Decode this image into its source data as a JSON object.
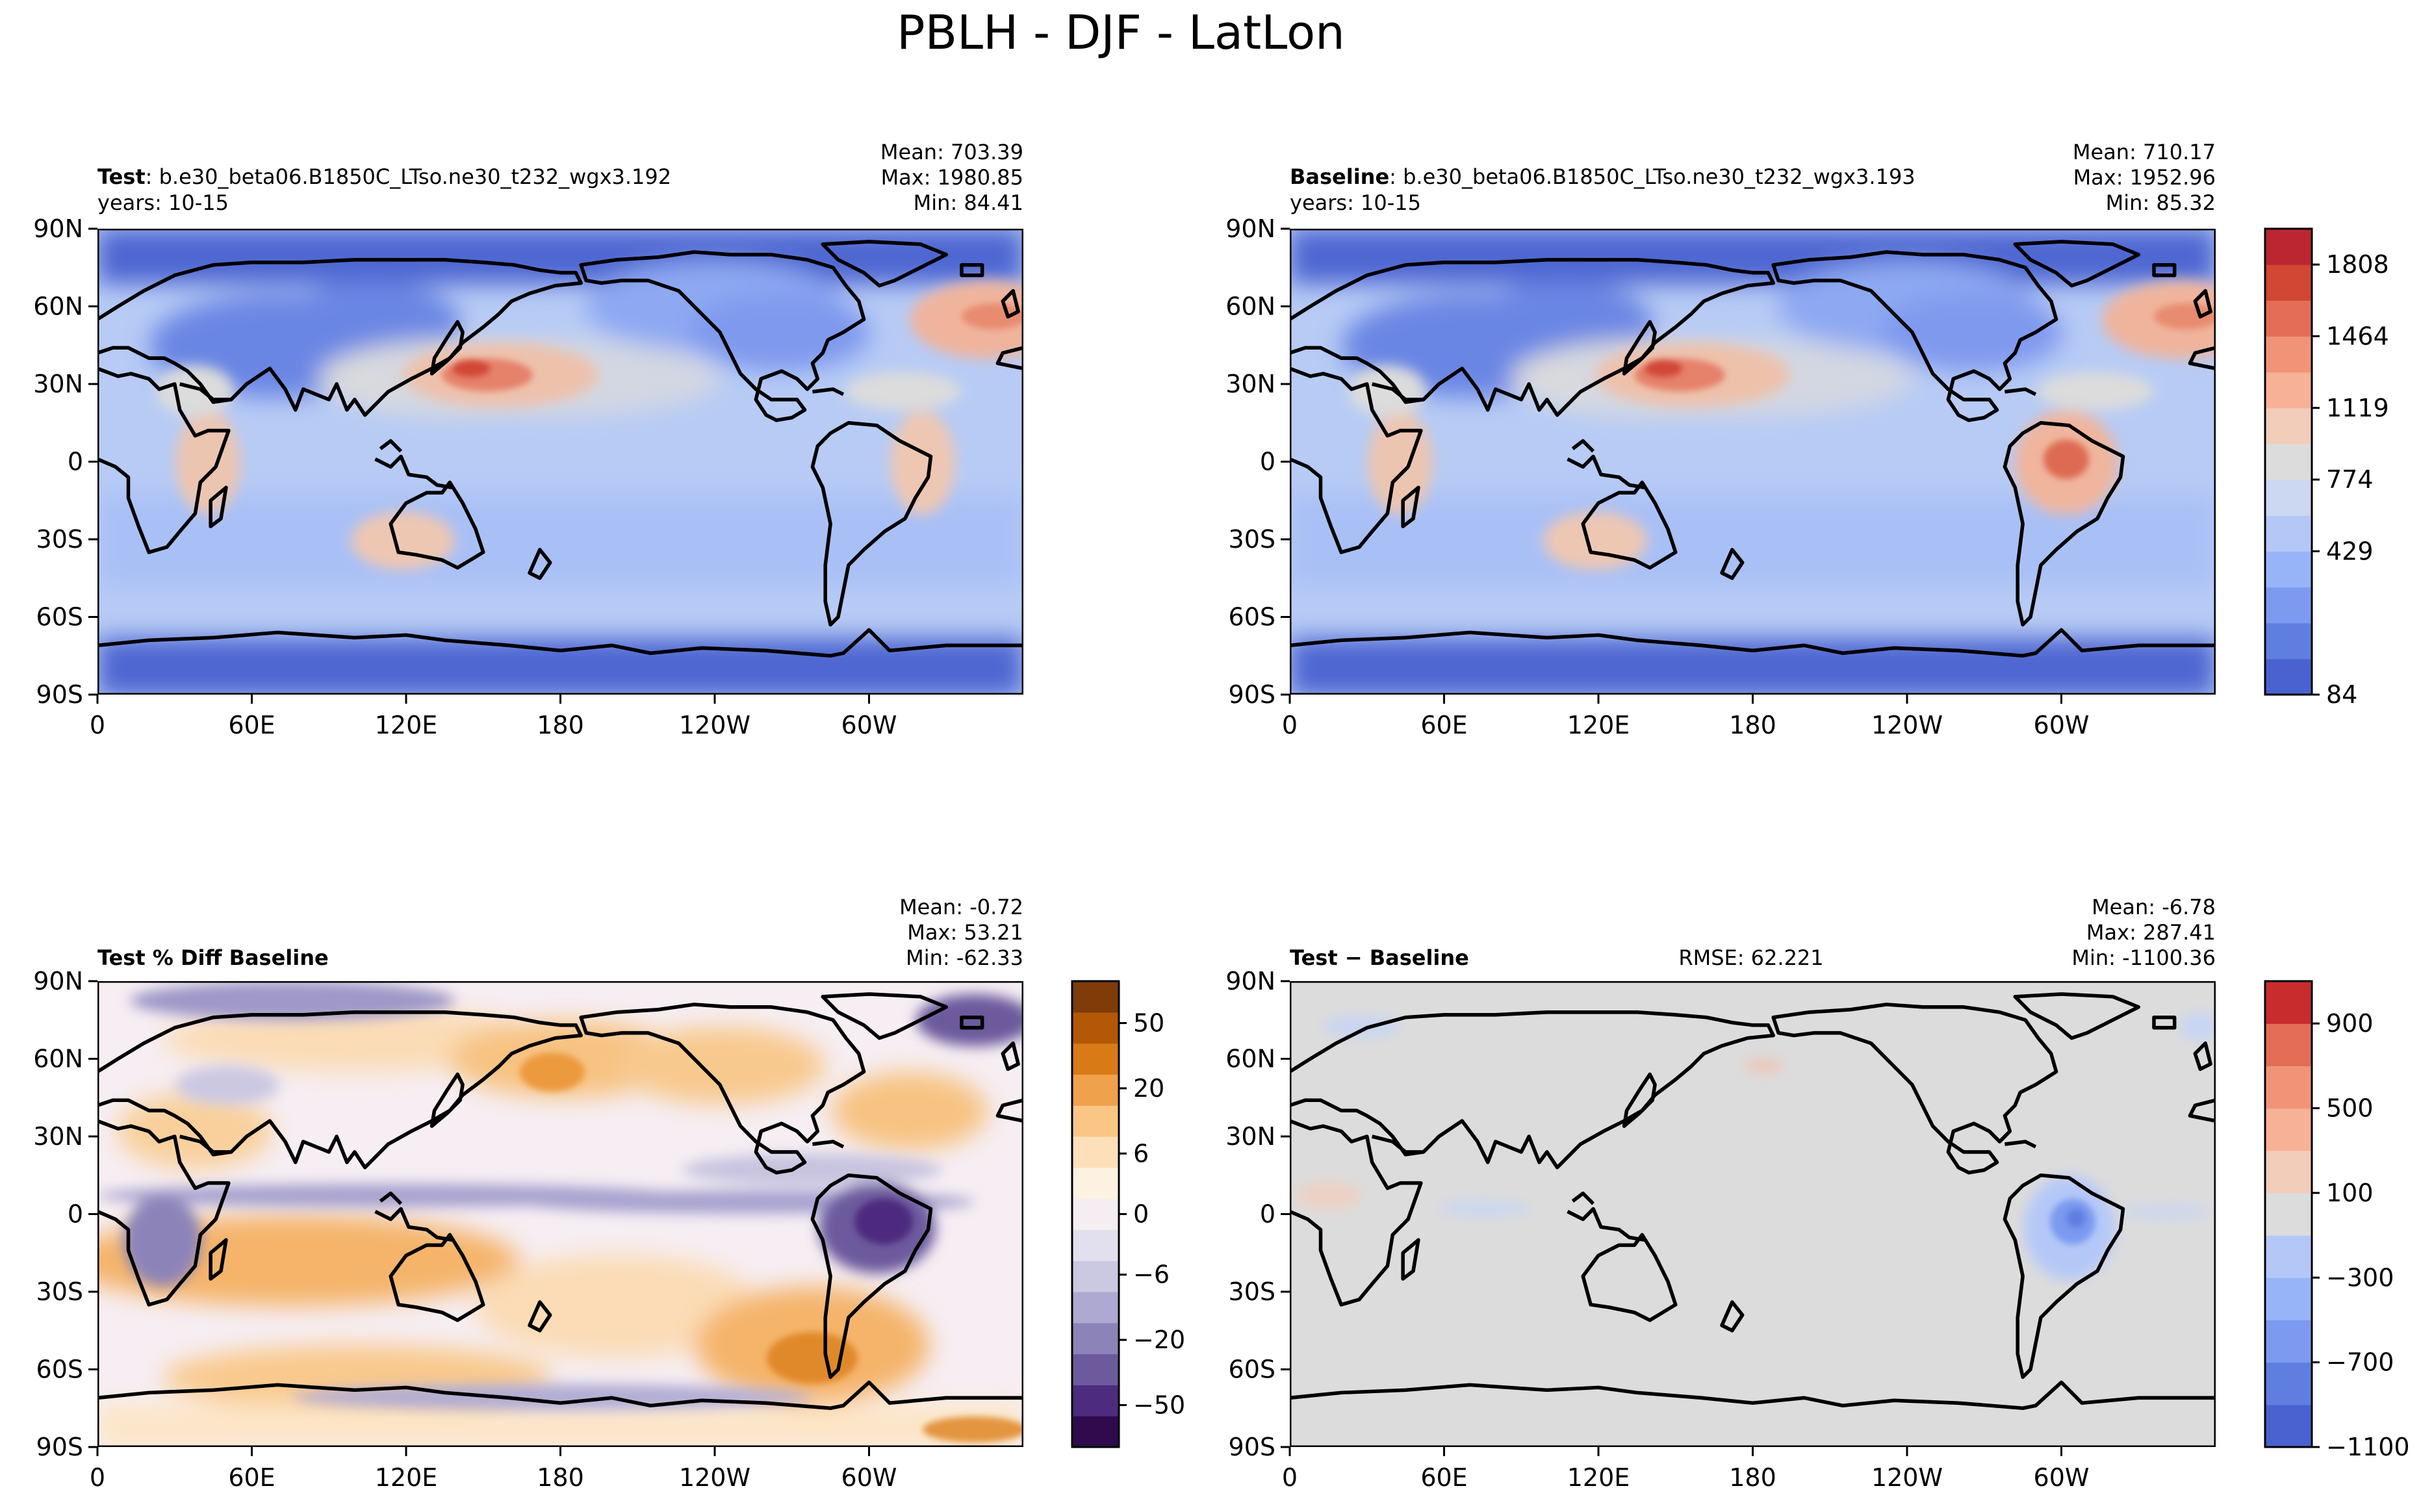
{
  "figure": {
    "title": "PBLH - DJF - LatLon"
  },
  "lat_ticks": [
    "90N",
    "60N",
    "30N",
    "0",
    "30S",
    "60S",
    "90S"
  ],
  "lon_ticks": [
    "0",
    "60E",
    "120E",
    "180",
    "120W",
    "60W"
  ],
  "colors": {
    "coolwarm": [
      "#4a62cf",
      "#5f7ee0",
      "#7c9af0",
      "#98b4f8",
      "#b4c8f8",
      "#ccd7f1",
      "#dcdcdc",
      "#f2cdb9",
      "#f6b197",
      "#f19377",
      "#e36e55",
      "#d24634",
      "#bb2630"
    ],
    "puor": [
      "#2f0a4d",
      "#4d2c7f",
      "#6c5a9d",
      "#8c84b9",
      "#ada9d1",
      "#cbc8e2",
      "#e2e0ee",
      "#f4eef2",
      "#fdf2e1",
      "#fde0b9",
      "#f9c685",
      "#f0a14b",
      "#d87b17",
      "#b35806",
      "#7f3b08"
    ],
    "diff": [
      "#4a62cf",
      "#5f7ee0",
      "#7c9af0",
      "#98b4f8",
      "#b4c8f8",
      "#dcdcdc",
      "#f2cdb9",
      "#f6b197",
      "#f19377",
      "#e36e55",
      "#c92c2c"
    ]
  },
  "panels": {
    "test": {
      "label_bold": "Test",
      "label_rest": ": b.e30_beta06.B1850C_LTso.ne30_t232_wgx3.192",
      "years": "years: 10-15",
      "stats": [
        "Mean: 703.39",
        "Max: 1980.85",
        "Min: 84.41"
      ]
    },
    "baseline": {
      "label_bold": "Baseline",
      "label_rest": ": b.e30_beta06.B1850C_LTso.ne30_t232_wgx3.193",
      "years": "years: 10-15",
      "stats": [
        "Mean: 710.17",
        "Max: 1952.96",
        "Min: 85.32"
      ]
    },
    "pctdiff": {
      "label_bold": "Test % Diff Baseline",
      "stats": [
        "Mean: -0.72",
        "Max: 53.21",
        "Min: -62.33"
      ]
    },
    "diff": {
      "label_bold": "Test − Baseline",
      "rmse": "RMSE: 62.221",
      "stats": [
        "Mean: -6.78",
        "Max: 287.41",
        "Min: -1100.36"
      ]
    }
  },
  "colorbars": {
    "main": [
      "1808",
      "1464",
      "1119",
      "774",
      "429",
      "84"
    ],
    "pctdiff": [
      "50",
      "20",
      "6",
      "0",
      "−6",
      "−20",
      "−50"
    ],
    "diff": [
      "900",
      "500",
      "100",
      "−300",
      "−700",
      "−1100"
    ]
  },
  "chart_data": [
    {
      "type": "heatmap",
      "title": "Test",
      "variable": "PBLH",
      "season": "DJF",
      "xlabel": "",
      "ylabel": "",
      "x_ticks": [
        "0",
        "60E",
        "120E",
        "180",
        "120W",
        "60W"
      ],
      "y_ticks": [
        "90N",
        "60N",
        "30N",
        "0",
        "30S",
        "60S",
        "90S"
      ],
      "levels": [
        84,
        429,
        774,
        1119,
        1464,
        1808
      ],
      "mean": 703.39,
      "max": 1980.85,
      "min": 84.41
    },
    {
      "type": "heatmap",
      "title": "Baseline",
      "variable": "PBLH",
      "season": "DJF",
      "xlabel": "",
      "ylabel": "",
      "x_ticks": [
        "0",
        "60E",
        "120E",
        "180",
        "120W",
        "60W"
      ],
      "y_ticks": [
        "90N",
        "60N",
        "30N",
        "0",
        "30S",
        "60S",
        "90S"
      ],
      "levels": [
        84,
        429,
        774,
        1119,
        1464,
        1808
      ],
      "mean": 710.17,
      "max": 1952.96,
      "min": 85.32
    },
    {
      "type": "heatmap",
      "title": "Test % Diff Baseline",
      "xlabel": "",
      "ylabel": "",
      "levels": [
        -50,
        -20,
        -6,
        0,
        6,
        20,
        50
      ],
      "mean": -0.72,
      "max": 53.21,
      "min": -62.33
    },
    {
      "type": "heatmap",
      "title": "Test − Baseline",
      "xlabel": "",
      "ylabel": "",
      "levels": [
        -1100,
        -700,
        -300,
        100,
        500,
        900
      ],
      "mean": -6.78,
      "max": 287.41,
      "min": -1100.36,
      "rmse": 62.221
    }
  ]
}
